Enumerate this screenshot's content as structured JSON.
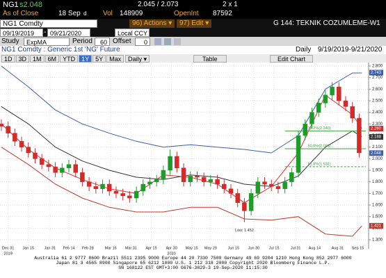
{
  "header": {
    "ticker": "NG1",
    "last": "s2.048",
    "bid_ask": "2.045 / 2.073",
    "size": "2 x 1",
    "as_of": "As of Close",
    "date": "18 Sep",
    "flag": "d",
    "vol_label": "Vol",
    "vol": "148909",
    "oi_label": "OpenInt",
    "oi": "87592"
  },
  "toolbar": {
    "security": "NG1 Comdty",
    "actions": "96) Actions ▾",
    "edit": "97) Edit ▾",
    "page_title": "G 144: TEKNIK COZUMLEME-W1",
    "start_date": "09/19/2019",
    "end_date": "09/21/2020",
    "currency": "Local CCY",
    "study_label": "Study",
    "study": "ExpMA",
    "period_label": "Period",
    "period": "60",
    "offset_label": "Offset",
    "offset": "0",
    "description": "NG1 Comdty : Generic 1st 'NG' Future",
    "frequency": "Daily",
    "range": "9/19/2019-9/21/2020",
    "ranges": [
      "1D",
      "3D",
      "1M",
      "6M",
      "YTD",
      "1Y",
      "5Y",
      "Max"
    ],
    "frequency_menu": "Daily ▾",
    "table": "Table",
    "edit_chart": "Edit Chart"
  },
  "chart_data": {
    "type": "candlestick",
    "up_color": "#1e9c2a",
    "down_color": "#d42a2a",
    "grid": true,
    "x": [
      -5,
      0,
      5,
      10,
      15,
      20,
      25,
      30,
      35,
      40,
      45,
      50,
      55,
      60,
      65,
      70,
      75,
      80,
      85,
      90,
      95,
      100,
      105,
      110,
      115,
      120,
      125,
      130,
      135,
      140,
      145,
      150,
      155,
      160,
      165,
      170,
      175,
      180,
      185,
      190,
      195,
      200,
      205,
      210,
      215,
      220,
      225,
      230,
      235,
      240,
      245,
      250,
      255,
      260
    ],
    "open": [
      2.3,
      2.28,
      2.22,
      2.15,
      2.1,
      2.05,
      2.0,
      1.95,
      1.93,
      1.88,
      1.92,
      1.95,
      1.88,
      1.8,
      1.76,
      1.74,
      1.78,
      1.72,
      1.7,
      1.68,
      1.66,
      1.72,
      1.78,
      1.8,
      1.82,
      1.9,
      2.02,
      1.92,
      1.8,
      1.85,
      1.84,
      1.8,
      1.82,
      1.78,
      1.74,
      1.7,
      1.62,
      1.55,
      1.7,
      1.8,
      1.78,
      1.76,
      1.74,
      1.8,
      1.88,
      2.2,
      2.3,
      2.4,
      2.48,
      2.55,
      2.62,
      2.5,
      2.45,
      2.35
    ],
    "high": [
      2.34,
      2.32,
      2.26,
      2.19,
      2.14,
      2.09,
      2.04,
      1.99,
      1.97,
      1.96,
      1.99,
      1.99,
      1.92,
      1.84,
      1.8,
      1.82,
      1.82,
      1.76,
      1.74,
      1.72,
      1.76,
      1.82,
      1.84,
      1.86,
      1.94,
      2.08,
      2.06,
      1.96,
      1.89,
      1.89,
      1.88,
      1.86,
      1.86,
      1.82,
      1.78,
      1.74,
      1.66,
      1.74,
      1.84,
      1.84,
      1.82,
      1.8,
      1.84,
      1.92,
      2.24,
      2.34,
      2.44,
      2.52,
      2.59,
      2.66,
      2.66,
      2.54,
      2.49,
      2.39
    ],
    "low": [
      2.24,
      2.18,
      2.11,
      2.06,
      2.01,
      1.96,
      1.91,
      1.89,
      1.84,
      1.84,
      1.88,
      1.84,
      1.76,
      1.72,
      1.7,
      1.7,
      1.68,
      1.66,
      1.64,
      1.62,
      1.62,
      1.68,
      1.74,
      1.76,
      1.78,
      1.86,
      1.88,
      1.76,
      1.76,
      1.8,
      1.76,
      1.76,
      1.74,
      1.7,
      1.66,
      1.58,
      1.452,
      1.51,
      1.66,
      1.74,
      1.72,
      1.7,
      1.7,
      1.76,
      1.84,
      2.16,
      2.26,
      2.36,
      2.44,
      2.51,
      2.46,
      2.41,
      2.31,
      2.01
    ],
    "close": [
      2.28,
      2.22,
      2.15,
      2.1,
      2.05,
      2.0,
      1.95,
      1.93,
      1.88,
      1.92,
      1.95,
      1.88,
      1.8,
      1.76,
      1.74,
      1.78,
      1.72,
      1.7,
      1.68,
      1.66,
      1.72,
      1.78,
      1.8,
      1.82,
      1.9,
      2.02,
      1.92,
      1.8,
      1.85,
      1.84,
      1.8,
      1.82,
      1.78,
      1.74,
      1.7,
      1.62,
      1.55,
      1.7,
      1.8,
      1.78,
      1.76,
      1.74,
      1.8,
      1.88,
      2.2,
      2.3,
      2.4,
      2.48,
      2.55,
      2.62,
      2.5,
      2.45,
      2.35,
      2.05
    ],
    "overlays": [
      {
        "color": "#3d5fa8",
        "x": [
          -5,
          15,
          35,
          55,
          75,
          95,
          115,
          135,
          155,
          175,
          195,
          215,
          235,
          255,
          262
        ],
        "values": [
          2.8,
          2.62,
          2.42,
          2.3,
          2.22,
          2.15,
          2.1,
          2.12,
          2.1,
          2.08,
          2.05,
          2.2,
          2.6,
          2.74,
          2.74
        ]
      },
      {
        "color": "#333333",
        "x": [
          -5,
          15,
          35,
          55,
          75,
          95,
          115,
          135,
          155,
          175,
          195,
          215,
          235,
          255,
          262
        ],
        "values": [
          2.45,
          2.3,
          2.1,
          1.98,
          1.9,
          1.84,
          1.82,
          1.86,
          1.84,
          1.78,
          1.76,
          1.85,
          2.1,
          2.24,
          2.19
        ]
      },
      {
        "color": "#c0392b",
        "x": [
          -5,
          15,
          35,
          55,
          75,
          95,
          115,
          135,
          155,
          175,
          195,
          215,
          235,
          255,
          262
        ],
        "values": [
          2.1,
          1.95,
          1.78,
          1.66,
          1.58,
          1.54,
          1.54,
          1.58,
          1.58,
          1.48,
          1.47,
          1.5,
          1.35,
          1.33,
          1.42
        ]
      },
      {
        "color": "#e03030",
        "x": [
          -5,
          15,
          35,
          55,
          75,
          95,
          115,
          135,
          155,
          175,
          195,
          215,
          235,
          255,
          262
        ],
        "values": [
          2.3,
          2.08,
          1.92,
          1.82,
          1.74,
          1.7,
          1.86,
          1.84,
          1.78,
          1.62,
          1.76,
          2.05,
          2.55,
          2.38,
          2.26
        ]
      }
    ],
    "markers": [
      {
        "value": 2.743,
        "label": "2.743",
        "color": "#3d5fa8"
      },
      {
        "value": 2.26,
        "label": "2.260",
        "color": "#d42a2a"
      },
      {
        "value": 2.188,
        "label": "2.188",
        "color": "#333333"
      },
      {
        "value": 2.048,
        "label": "2.048",
        "color": "#3d5fa8"
      },
      {
        "value": 1.421,
        "label": "1.421",
        "color": "#c0392b"
      }
    ],
    "fib_color": "#3aa53a",
    "fib_levels": [
      {
        "value": 2.24,
        "label": "38.2%(2.240)"
      },
      {
        "value": 2.086,
        "label": "50.0%(2.086)"
      },
      {
        "value": 1.931,
        "label": "61.8%(1.931)"
      }
    ],
    "low_label": {
      "value": 1.452,
      "label": "Low: 1.452"
    },
    "ylim": [
      1.27,
      2.83
    ],
    "yticks": [
      {
        "value": 2.8,
        "label": "2.800"
      },
      {
        "value": 2.7,
        "label": "2.700"
      },
      {
        "value": 2.6,
        "label": "2.600"
      },
      {
        "value": 2.5,
        "label": "2.500"
      },
      {
        "value": 2.4,
        "label": "2.400"
      },
      {
        "value": 2.3,
        "label": "2.300"
      },
      {
        "value": 2.2,
        "label": "2.200"
      },
      {
        "value": 2.1,
        "label": "2.100"
      },
      {
        "value": 2.0,
        "label": "2.000"
      },
      {
        "value": 1.9,
        "label": "1.900"
      },
      {
        "value": 1.8,
        "label": "1.800"
      },
      {
        "value": 1.7,
        "label": "1.700"
      },
      {
        "value": 1.6,
        "label": "1.600"
      },
      {
        "value": 1.5,
        "label": "1.500"
      },
      {
        "value": 1.4,
        "label": "1.400"
      },
      {
        "value": 1.3,
        "label": "1.300"
      }
    ],
    "xlim": [
      -6,
      267
    ],
    "xticks": [
      {
        "value": 0,
        "label": "Dec 31"
      },
      {
        "value": 15,
        "label": "Jan 15"
      },
      {
        "value": 31,
        "label": "Jan 31"
      },
      {
        "value": 45,
        "label": "Feb 14"
      },
      {
        "value": 59,
        "label": "Feb 28"
      },
      {
        "value": 76,
        "label": "Mar 16"
      },
      {
        "value": 91,
        "label": "Mar 31"
      },
      {
        "value": 106,
        "label": "Apr 15"
      },
      {
        "value": 121,
        "label": "Apr 30"
      },
      {
        "value": 136,
        "label": "May 15"
      },
      {
        "value": 150,
        "label": "May 29"
      },
      {
        "value": 167,
        "label": "Jun 15"
      },
      {
        "value": 182,
        "label": "Jun 30"
      },
      {
        "value": 197,
        "label": "Jul 15"
      },
      {
        "value": 213,
        "label": "Jul 31"
      },
      {
        "value": 227,
        "label": "Aug 14"
      },
      {
        "value": 244,
        "label": "Aug 31"
      },
      {
        "value": 259,
        "label": "Sep 15"
      }
    ],
    "year_labels": [
      {
        "value": 0,
        "label": "2019"
      },
      {
        "value": 121,
        "label": "2020"
      }
    ]
  },
  "footer": {
    "lines": [
      "Australia 61 2 9777 8600 Brazil 5511 2395 9000 Europe 44 20 7330 7500 Germany 49 69 9204 1210 Hong Kong 852 2977 6000",
      "Japan 81 3 4565 8900        Singapore 65 6212 1000        U.S. 1 212 318 2000        Copyright 2020 Bloomberg Finance L.P.",
      "SN 168122 EST  GMT+3:00 G676-3829-3 19-Sep-2020 11:15:30"
    ]
  }
}
